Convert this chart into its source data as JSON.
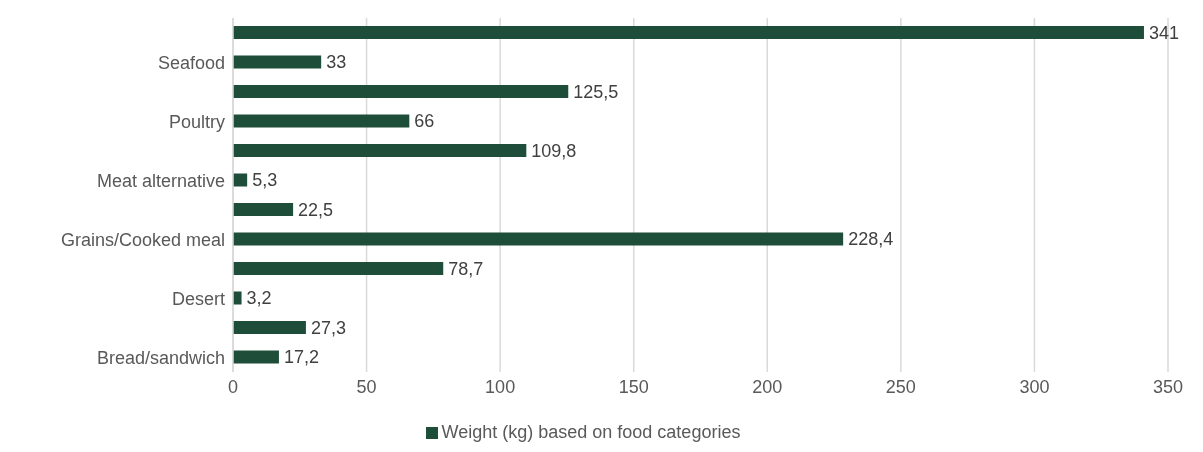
{
  "chart_data": {
    "type": "bar",
    "orientation": "horizontal",
    "categories": [
      null,
      "Seafood",
      null,
      "Poultry",
      null,
      "Meat alternative",
      null,
      "Grains/Cooked meal",
      null,
      "Desert",
      null,
      "Bread/sandwich"
    ],
    "series": [
      {
        "name": "Weight (kg) based on food categories",
        "color": "#1e4d3a",
        "values": [
          341,
          33,
          125.5,
          66,
          109.8,
          5.3,
          22.5,
          228.4,
          78.7,
          3.2,
          27.3,
          17.2
        ],
        "value_labels": [
          "341",
          "33",
          "125,5",
          "66",
          "109,8",
          "5,3",
          "22,5",
          "228,4",
          "78,7",
          "3,2",
          "27,3",
          "17,2"
        ]
      }
    ],
    "xlim": [
      0,
      350
    ],
    "xticks": [
      0,
      50,
      100,
      150,
      200,
      250,
      300,
      350
    ],
    "grid": "x",
    "legend": "bottom"
  }
}
